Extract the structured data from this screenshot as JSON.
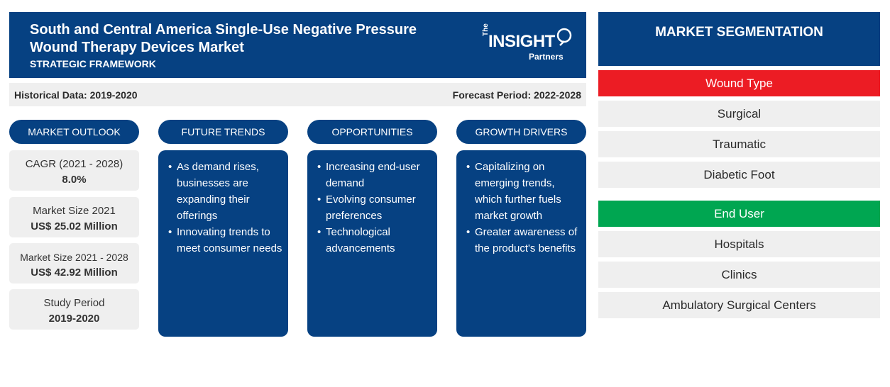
{
  "header": {
    "title": "South and Central America Single-Use Negative Pressure Wound Therapy Devices Market",
    "subtitle": "STRATEGIC FRAMEWORK",
    "logo": {
      "the": "The",
      "insight": "INSIGHT",
      "partners": "Partners"
    }
  },
  "infobar": {
    "historical": "Historical Data: 2019-2020",
    "forecast": "Forecast Period: 2022-2028"
  },
  "pills": {
    "outlook": "MARKET OUTLOOK",
    "trends": "FUTURE TRENDS",
    "opportunities": "OPPORTUNITIES",
    "drivers": "GROWTH DRIVERS"
  },
  "outlook": [
    {
      "label": "CAGR (2021 - 2028)",
      "value": "8.0%"
    },
    {
      "label": "Market Size 2021",
      "value": "US$ 25.02 Million"
    },
    {
      "label": "Market Size 2021 - 2028",
      "value": "US$ 42.92 Million"
    },
    {
      "label": "Study Period",
      "value": "2019-2020"
    }
  ],
  "trends": [
    "As demand rises, businesses are expanding their offerings",
    "Innovating trends to meet consumer needs"
  ],
  "opportunities": [
    "Increasing end-user demand",
    "Evolving consumer preferences",
    "Technological advancements"
  ],
  "drivers": [
    "Capitalizing on emerging trends, which further fuels market growth",
    "Greater awareness of the product's benefits"
  ],
  "segmentation": {
    "title": "MARKET SEGMENTATION",
    "wound_type": {
      "label": "Wound Type",
      "color": "#ec1c24",
      "items": [
        "Surgical",
        "Traumatic",
        "Diabetic Foot"
      ]
    },
    "end_user": {
      "label": "End User",
      "color": "#00a651",
      "items": [
        "Hospitals",
        "Clinics",
        "Ambulatory Surgical Centers"
      ]
    }
  },
  "colors": {
    "navy": "#064182",
    "panel": "#efefef"
  }
}
